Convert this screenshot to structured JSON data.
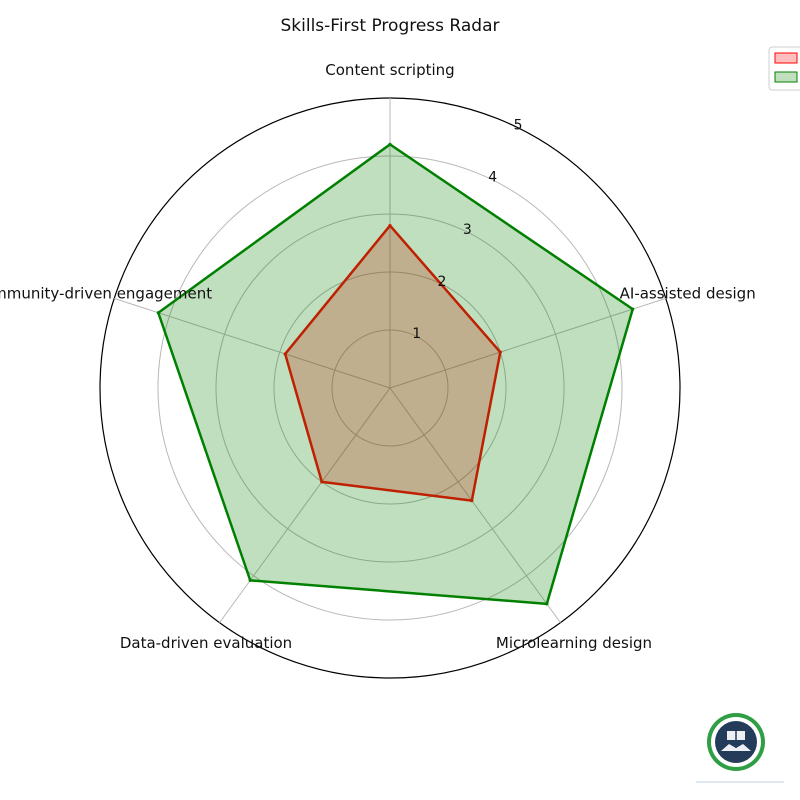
{
  "chart_data": {
    "type": "radar",
    "title": "Skills-First Progress Radar",
    "axes": [
      "Content scripting",
      "AI-assisted design",
      "Microlearning design",
      "Data-driven evaluation",
      "Community-driven engagement"
    ],
    "r_ticks": [
      1,
      2,
      3,
      4,
      5
    ],
    "rlim": [
      0,
      5
    ],
    "grid": true,
    "legend_position": "top-right",
    "series": [
      {
        "values": [
          2.8,
          2.0,
          2.4,
          2.0,
          1.9
        ],
        "color": "#ff0000",
        "fill": "#ff0000",
        "fill_opacity": 0.25
      },
      {
        "values": [
          4.2,
          4.4,
          4.6,
          4.1,
          4.2
        ],
        "color": "#008000",
        "fill": "#008000",
        "fill_opacity": 0.25
      }
    ]
  },
  "watermark": {
    "logo_name": "badge-logo-icon"
  }
}
